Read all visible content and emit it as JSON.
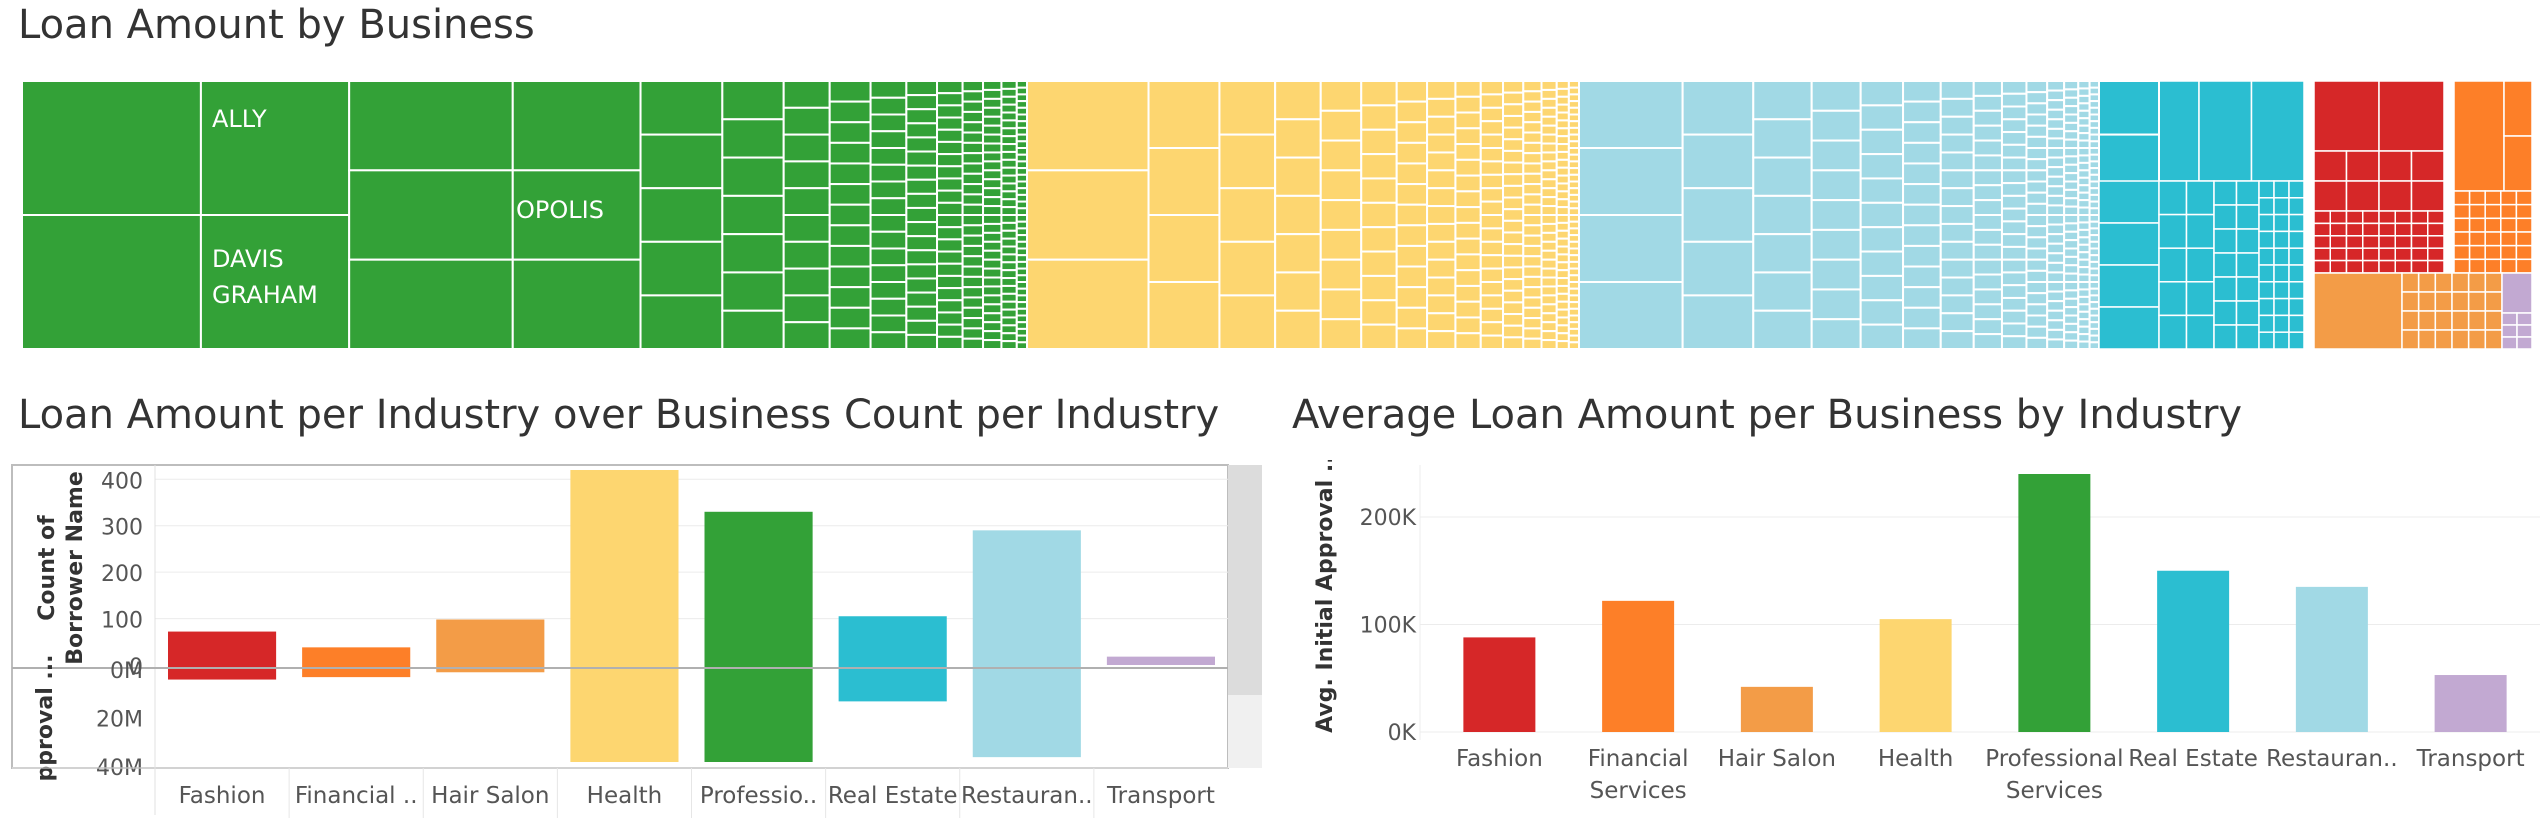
{
  "titles": {
    "treemap": "Loan Amount by Business",
    "combo": "Loan Amount per Industry over Business Count per Industry",
    "avg": "Average Loan Amount per Business by Industry"
  },
  "colors": {
    "Fashion": "#d62728",
    "Financial Services": "#fd7f28",
    "Hair Salon": "#f39c47",
    "Health": "#fdd670",
    "Professional Services": "#33a137",
    "Real Estate": "#2bbed1",
    "Restaurants": "#a1d9e5",
    "Transport": "#c2a9d2"
  },
  "treemap_labels": {
    "ally": "ALLY",
    "davis": "DAVIS",
    "graham": "GRAHAM",
    "opolis": "OPOLIS"
  },
  "chart_data": [
    {
      "type": "bar",
      "title": "Loan Amount per Industry over Business Count per Industry",
      "categories": [
        "Fashion",
        "Financial ..",
        "Hair Salon",
        "Health",
        "Professio..",
        "Real Estate",
        "Restauran..",
        "Transport"
      ],
      "series": [
        {
          "name": "Count of Borrower Name",
          "values": [
            72,
            38,
            98,
            420,
            330,
            105,
            290,
            18
          ]
        },
        {
          "name": "Initial Approval",
          "values": [
            -6,
            -5,
            -3,
            -40,
            -40,
            -15,
            -38,
            0
          ]
        }
      ],
      "ylabel_top": [
        "Count of",
        "Borrower Name"
      ],
      "ylabel_bottom": "pproval ...",
      "yticks_top": [
        "400",
        "300",
        "200",
        "100",
        "0"
      ],
      "yticks_bottom": [
        "0M",
        "20M",
        "40M"
      ],
      "ylim_top": [
        0,
        420
      ],
      "ylim_bottom": [
        0,
        40
      ]
    },
    {
      "type": "bar",
      "title": "Average Loan Amount per Business by Industry",
      "categories": [
        [
          "Fashion"
        ],
        [
          "Financial",
          "Services"
        ],
        [
          "Hair Salon"
        ],
        [
          "Health"
        ],
        [
          "Professional",
          "Services"
        ],
        [
          "Real Estate"
        ],
        [
          "Restauran.."
        ],
        [
          "Transport"
        ]
      ],
      "values": [
        88000,
        122000,
        42000,
        105000,
        240000,
        150000,
        135000,
        53000
      ],
      "ylabel": "Avg. Initial Approval ...",
      "yticks": [
        {
          "value": 0,
          "label": "0K"
        },
        {
          "value": 100000,
          "label": "100K"
        },
        {
          "value": 200000,
          "label": "200K"
        }
      ],
      "ylim": [
        0,
        240000
      ]
    }
  ]
}
